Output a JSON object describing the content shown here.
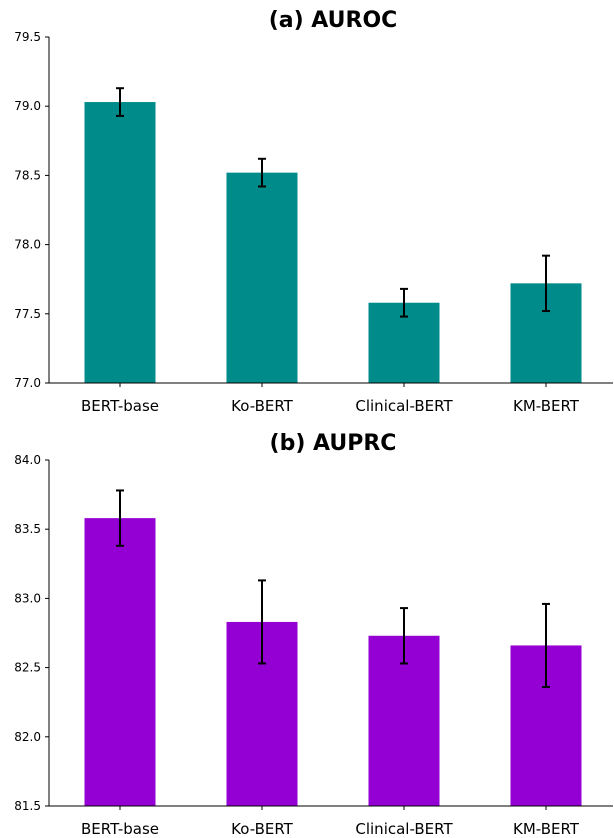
{
  "chart_data": [
    {
      "type": "bar",
      "title": "(a) AUROC",
      "categories": [
        "BERT-base",
        "Ko-BERT",
        "Clinical-BERT",
        "KM-BERT"
      ],
      "values": [
        79.03,
        78.52,
        77.58,
        77.72
      ],
      "errors": [
        0.1,
        0.1,
        0.1,
        0.2
      ],
      "ylim": [
        77.0,
        79.5
      ],
      "yticks": [
        "77.0",
        "77.5",
        "78.0",
        "78.5",
        "79.0",
        "79.5"
      ],
      "color": "#008b8b",
      "grid": false
    },
    {
      "type": "bar",
      "title": "(b) AUPRC",
      "categories": [
        "BERT-base",
        "Ko-BERT",
        "Clinical-BERT",
        "KM-BERT"
      ],
      "values": [
        83.58,
        82.83,
        82.73,
        82.66
      ],
      "errors": [
        0.2,
        0.3,
        0.2,
        0.3
      ],
      "ylim": [
        81.5,
        84.0
      ],
      "yticks": [
        "81.5",
        "82.0",
        "82.5",
        "83.0",
        "83.5",
        "84.0"
      ],
      "color": "#9400d3",
      "grid": false
    }
  ]
}
